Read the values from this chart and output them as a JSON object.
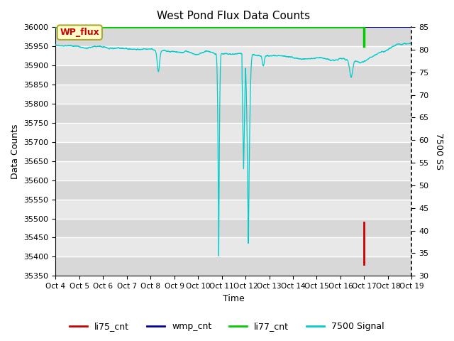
{
  "title": "West Pond Flux Data Counts",
  "xlabel": "Time",
  "ylabel_left": "Data Counts",
  "ylabel_right": "7500 SS",
  "ylim_left": [
    35350,
    36000
  ],
  "ylim_right": [
    30,
    85
  ],
  "yticks_left": [
    35350,
    35400,
    35450,
    35500,
    35550,
    35600,
    35650,
    35700,
    35750,
    35800,
    35850,
    35900,
    35950,
    36000
  ],
  "yticks_right": [
    30,
    35,
    40,
    45,
    50,
    55,
    60,
    65,
    70,
    75,
    80,
    85
  ],
  "xtick_labels": [
    "Oct 4",
    "Oct 5",
    "Oct 6",
    "Oct 7",
    "Oct 8",
    "Oct 9",
    "Oct 10",
    "Oct 11",
    "Oct 12",
    "Oct 13",
    "Oct 14",
    "Oct 15",
    "Oct 16",
    "Oct 17",
    "Oct 18",
    "Oct 19"
  ],
  "bg_color_light": "#e8e8e8",
  "bg_color_dark": "#d0d0d0",
  "fig_color": "#ffffff",
  "annotation_box_color": "#ffffcc",
  "annotation_box_edge": "#aaa830",
  "annotation_text": "WP_flux",
  "annotation_text_color": "#cc0000",
  "legend_labels": [
    "li75_cnt",
    "wmp_cnt",
    "li77_cnt",
    "7500 Signal"
  ],
  "legend_colors": [
    "#cc0000",
    "#000099",
    "#00cc00",
    "#00cccc"
  ],
  "green_line_color": "#00cc00",
  "red_line_color": "#cc0000",
  "cyan_line_color": "#00cccc",
  "blue_line_color": "#000099"
}
